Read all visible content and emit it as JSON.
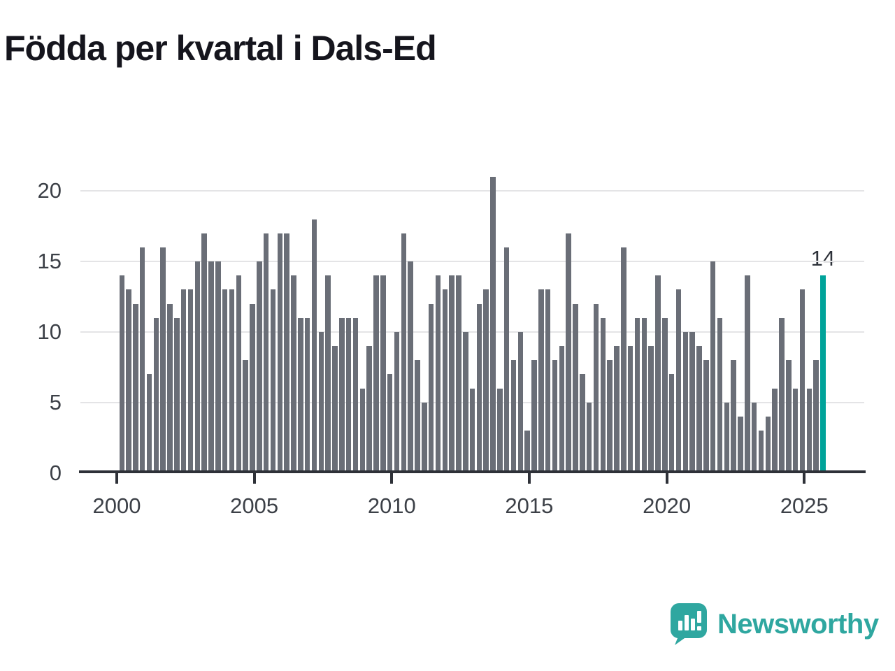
{
  "title": "Födda per kvartal i Dals-Ed",
  "annotation": {
    "label": "14"
  },
  "logo": {
    "text": "Newsworthy",
    "color": "#2fa7a0"
  },
  "chart_data": {
    "type": "bar",
    "title": "Födda per kvartal i Dals-Ed",
    "ylabel": "",
    "xlabel": "",
    "x_start": "2000-Q1",
    "x_end": "2025-Q3",
    "quarters": [
      "2000Q1",
      "2000Q2",
      "2000Q3",
      "2000Q4",
      "2001Q1",
      "2001Q2",
      "2001Q3",
      "2001Q4",
      "2002Q1",
      "2002Q2",
      "2002Q3",
      "2002Q4",
      "2003Q1",
      "2003Q2",
      "2003Q3",
      "2003Q4",
      "2004Q1",
      "2004Q2",
      "2004Q3",
      "2004Q4",
      "2005Q1",
      "2005Q2",
      "2005Q3",
      "2005Q4",
      "2006Q1",
      "2006Q2",
      "2006Q3",
      "2006Q4",
      "2007Q1",
      "2007Q2",
      "2007Q3",
      "2007Q4",
      "2008Q1",
      "2008Q2",
      "2008Q3",
      "2008Q4",
      "2009Q1",
      "2009Q2",
      "2009Q3",
      "2009Q4",
      "2010Q1",
      "2010Q2",
      "2010Q3",
      "2010Q4",
      "2011Q1",
      "2011Q2",
      "2011Q3",
      "2011Q4",
      "2012Q1",
      "2012Q2",
      "2012Q3",
      "2012Q4",
      "2013Q1",
      "2013Q2",
      "2013Q3",
      "2013Q4",
      "2014Q1",
      "2014Q2",
      "2014Q3",
      "2014Q4",
      "2015Q1",
      "2015Q2",
      "2015Q3",
      "2015Q4",
      "2016Q1",
      "2016Q2",
      "2016Q3",
      "2016Q4",
      "2017Q1",
      "2017Q2",
      "2017Q3",
      "2017Q4",
      "2018Q1",
      "2018Q2",
      "2018Q3",
      "2018Q4",
      "2019Q1",
      "2019Q2",
      "2019Q3",
      "2019Q4",
      "2020Q1",
      "2020Q2",
      "2020Q3",
      "2020Q4",
      "2021Q1",
      "2021Q2",
      "2021Q3",
      "2021Q4",
      "2022Q1",
      "2022Q2",
      "2022Q3",
      "2022Q4",
      "2023Q1",
      "2023Q2",
      "2023Q3",
      "2023Q4",
      "2024Q1",
      "2024Q2",
      "2024Q3",
      "2024Q4",
      "2025Q1",
      "2025Q2",
      "2025Q3"
    ],
    "values": [
      14,
      13,
      12,
      16,
      7,
      11,
      16,
      12,
      11,
      13,
      13,
      15,
      17,
      15,
      15,
      13,
      13,
      14,
      8,
      12,
      15,
      17,
      13,
      17,
      17,
      14,
      11,
      11,
      18,
      10,
      14,
      9,
      11,
      11,
      11,
      6,
      9,
      14,
      14,
      7,
      10,
      17,
      15,
      8,
      5,
      12,
      14,
      13,
      14,
      14,
      10,
      6,
      12,
      13,
      21,
      6,
      16,
      8,
      10,
      3,
      8,
      13,
      13,
      8,
      9,
      17,
      12,
      7,
      5,
      12,
      11,
      8,
      9,
      16,
      9,
      11,
      11,
      9,
      14,
      11,
      7,
      13,
      10,
      10,
      9,
      8,
      15,
      11,
      5,
      8,
      4,
      14,
      5,
      3,
      4,
      6,
      11,
      8,
      6,
      13,
      6,
      8,
      14
    ],
    "yticks": [
      0,
      5,
      10,
      15,
      20
    ],
    "xticks": [
      2000,
      2005,
      2010,
      2015,
      2020,
      2025
    ],
    "ylim": [
      0,
      22
    ],
    "grid": true,
    "legend": "none",
    "bar_color": "#6a6e77",
    "highlight_color": "#00a39a",
    "highlight_index": 102,
    "highlight_label": "14"
  }
}
